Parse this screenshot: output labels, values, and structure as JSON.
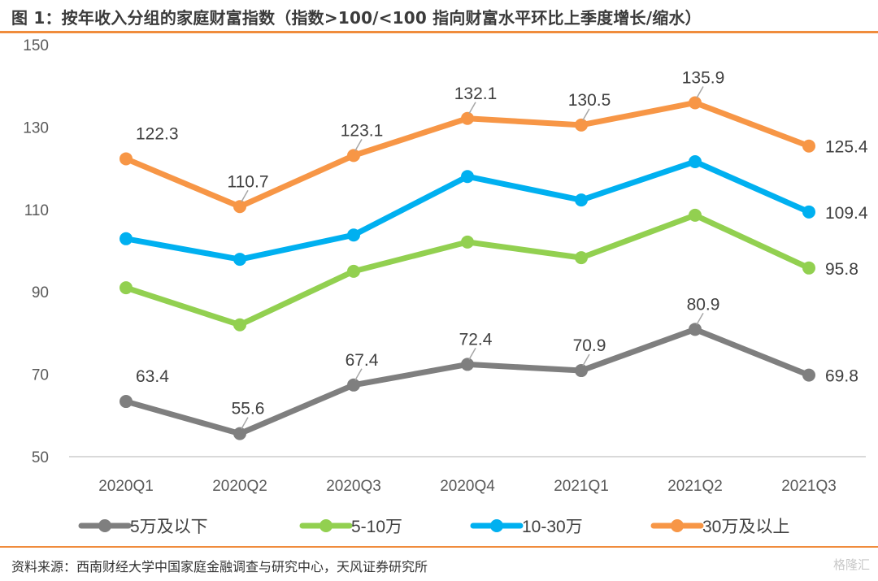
{
  "title": "图 1：按年收入分组的家庭财富指数（指数>100/<100 指向财富水平环比上季度增长/缩水）",
  "source": "资料来源：西南财经大学中国家庭金融调查与研究中心，天风证券研究所",
  "watermark": "格隆汇",
  "chart_data": {
    "type": "line",
    "title": "按年收入分组的家庭财富指数（指数>100/<100 指向财富水平环比上季度增长/缩水）",
    "xlabel": "",
    "ylabel": "",
    "categories": [
      "2020Q1",
      "2020Q2",
      "2020Q3",
      "2020Q4",
      "2021Q1",
      "2021Q2",
      "2021Q3"
    ],
    "ylim": [
      50,
      150
    ],
    "yticks": [
      50,
      70,
      90,
      110,
      130,
      150
    ],
    "grid": false,
    "legend_position": "bottom",
    "series": [
      {
        "name": "5万及以下",
        "color": "#7f7f7f",
        "values": [
          63.4,
          55.6,
          67.4,
          72.4,
          70.9,
          80.9,
          69.8
        ],
        "labels": [
          "63.4",
          "55.6",
          "67.4",
          "72.4",
          "70.9",
          "80.9",
          "69.8"
        ]
      },
      {
        "name": "5-10万",
        "color": "#92d050",
        "values": [
          91.0,
          82.0,
          95.0,
          102.1,
          98.3,
          108.6,
          95.8
        ],
        "labels": [
          null,
          null,
          null,
          null,
          null,
          null,
          "95.8"
        ]
      },
      {
        "name": "10-30万",
        "color": "#00b0f0",
        "values": [
          102.9,
          97.9,
          103.8,
          118.0,
          112.3,
          121.6,
          109.4
        ],
        "labels": [
          null,
          null,
          null,
          null,
          null,
          null,
          "109.4"
        ]
      },
      {
        "name": "30万及以上",
        "color": "#f79646",
        "values": [
          122.3,
          110.7,
          123.1,
          132.1,
          130.5,
          135.9,
          125.4
        ],
        "labels": [
          "122.3",
          "110.7",
          "123.1",
          "132.1",
          "130.5",
          "135.9",
          "125.4"
        ]
      }
    ]
  }
}
